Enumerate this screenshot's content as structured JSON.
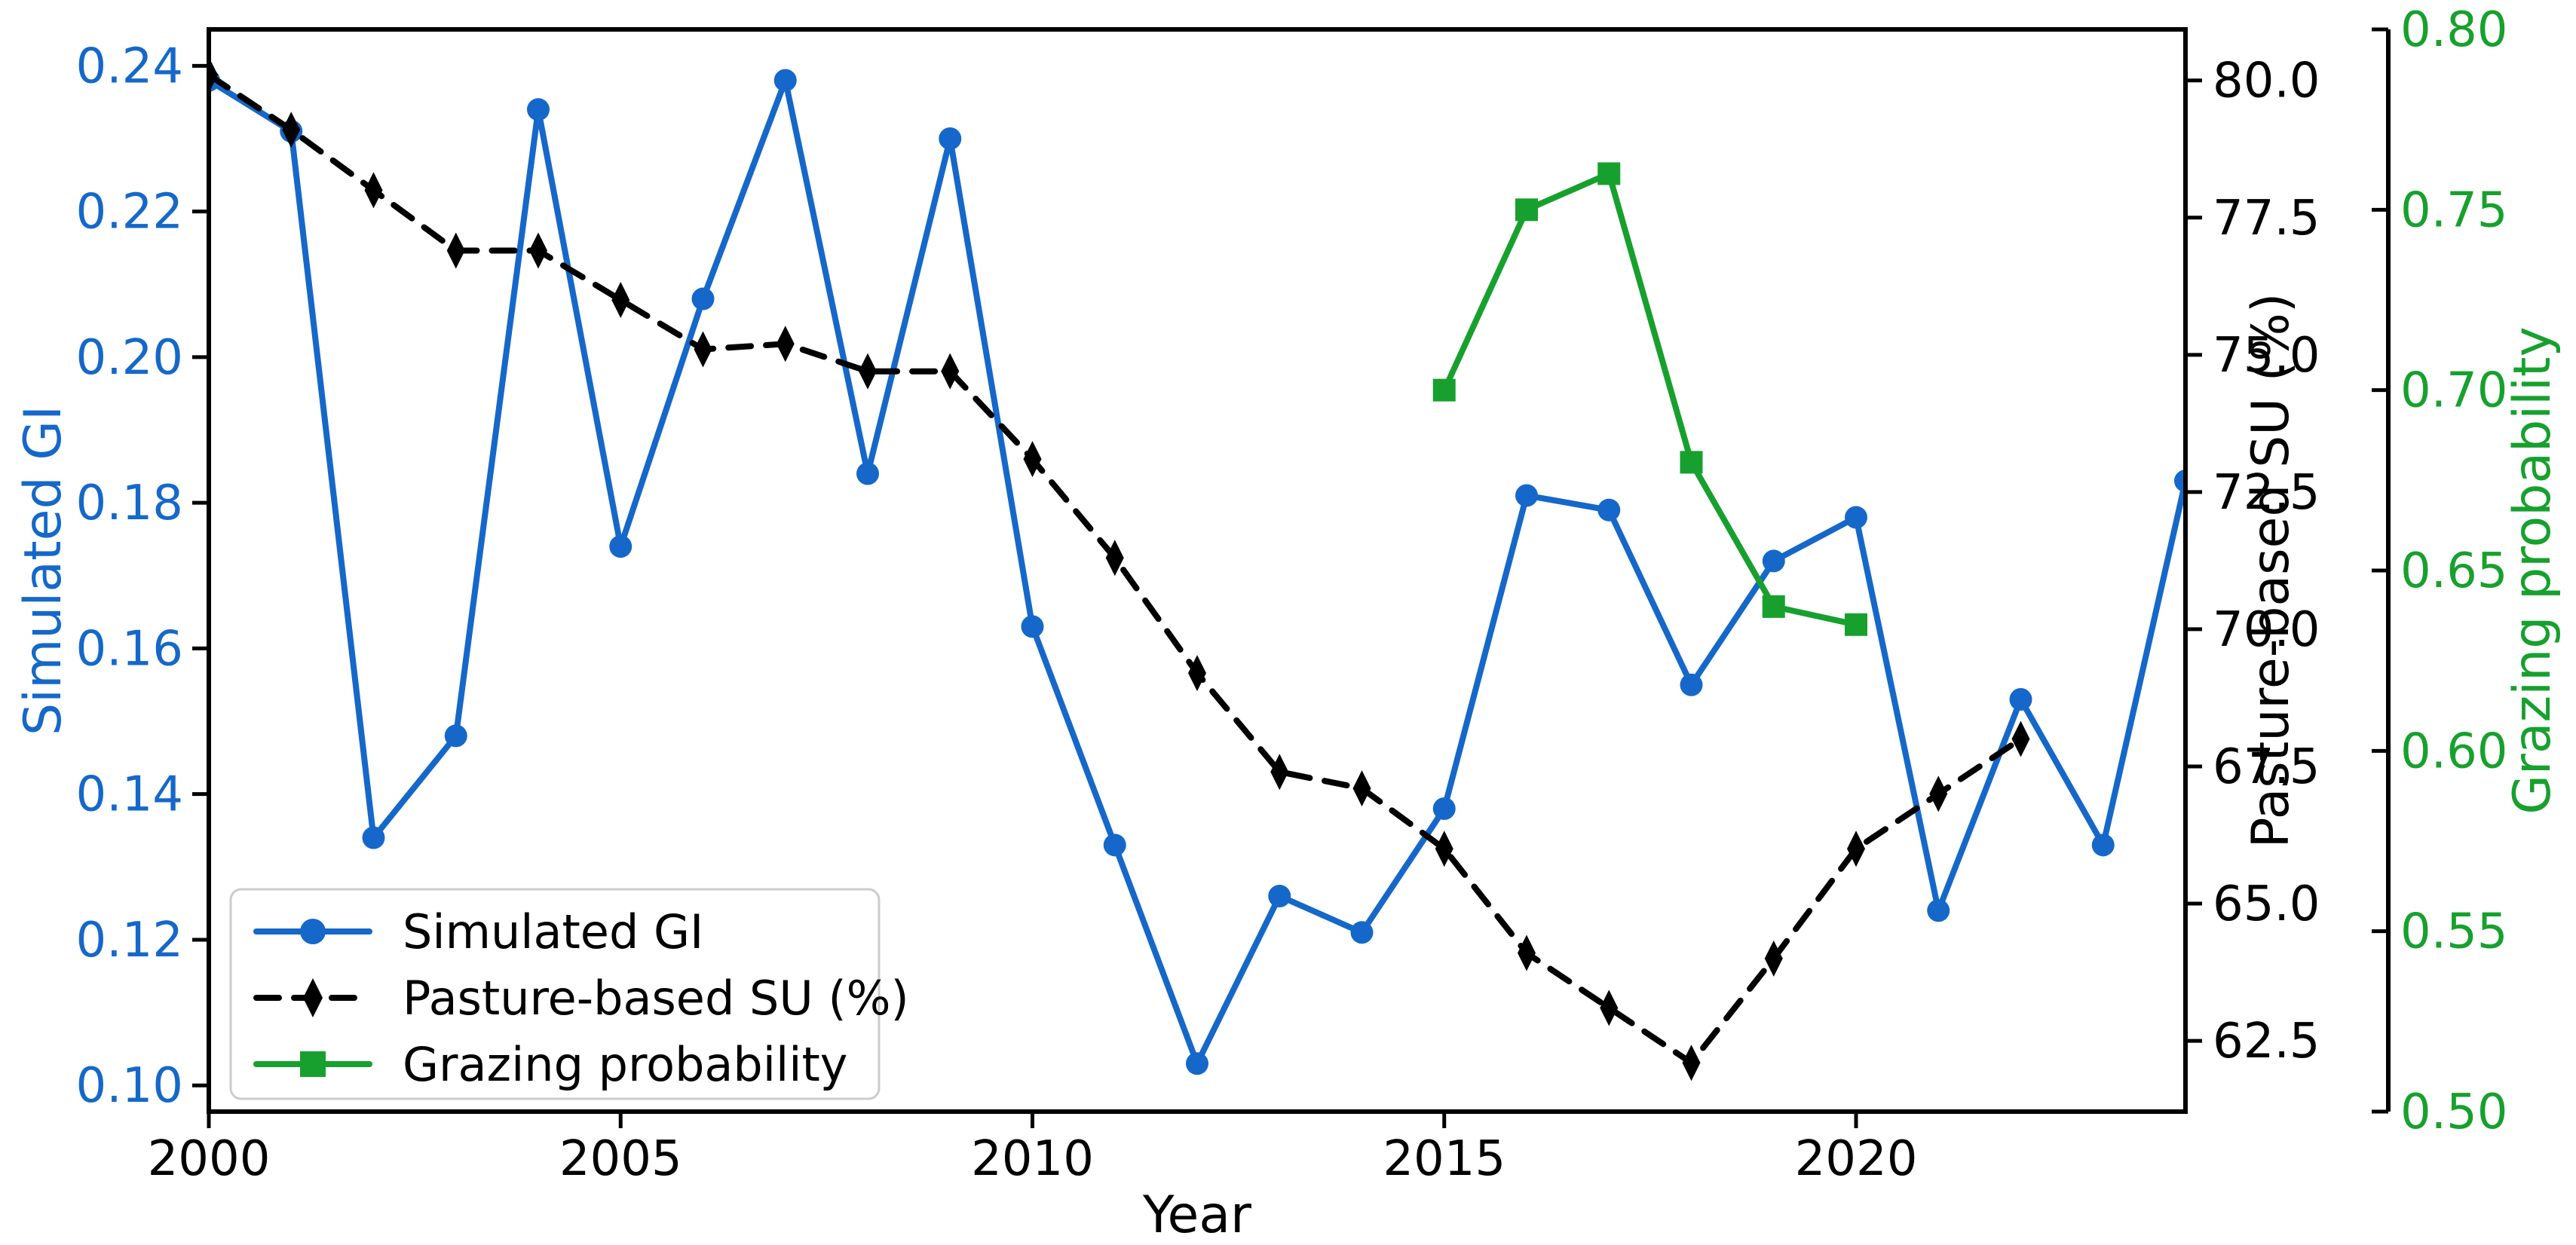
{
  "chart_data": {
    "type": "line",
    "title": "",
    "xlabel": "Year",
    "x_ticks": [
      2000,
      2005,
      2010,
      2015,
      2020
    ],
    "xlim": [
      2000,
      2024
    ],
    "grid": false,
    "legend": {
      "position": "lower left",
      "entries": [
        "Simulated GI",
        "Pasture-based SU (%)",
        "Grazing probability"
      ]
    },
    "axes": {
      "left": {
        "label": "Simulated GI",
        "color": "#1568c9",
        "ticks": [
          0.24,
          0.22,
          0.2,
          0.18,
          0.16,
          0.14,
          0.12,
          0.1
        ],
        "lim": [
          0.0964,
          0.245
        ],
        "decimals": 2
      },
      "right_su": {
        "label": "Pasture-based SU (%)",
        "color": "#000000",
        "ticks": [
          80.0,
          77.5,
          75.0,
          72.5,
          70.0,
          67.5,
          65.0,
          62.5
        ],
        "lim": [
          61.21,
          80.93
        ],
        "decimals": 1
      },
      "right_gp": {
        "label": "Grazing probability",
        "color": "#17a02e",
        "ticks": [
          0.8,
          0.75,
          0.7,
          0.65,
          0.6,
          0.55,
          0.5
        ],
        "lim": [
          0.5,
          0.8
        ],
        "decimals": 2
      }
    },
    "series": [
      {
        "name": "Simulated GI",
        "axis": "left",
        "color": "#1568c9",
        "marker": "circle",
        "line": "solid",
        "x": [
          2000,
          2001,
          2002,
          2003,
          2004,
          2005,
          2006,
          2007,
          2008,
          2009,
          2010,
          2011,
          2012,
          2013,
          2014,
          2015,
          2016,
          2017,
          2018,
          2019,
          2020,
          2021,
          2022,
          2023,
          2024
        ],
        "y": [
          0.238,
          0.231,
          0.134,
          0.148,
          0.234,
          0.174,
          0.208,
          0.238,
          0.184,
          0.23,
          0.163,
          0.133,
          0.103,
          0.126,
          0.121,
          0.138,
          0.181,
          0.179,
          0.155,
          0.172,
          0.178,
          0.124,
          0.153,
          0.133,
          0.183
        ]
      },
      {
        "name": "Pasture-based SU (%)",
        "axis": "right_su",
        "color": "#000000",
        "marker": "diamond",
        "line": "dashed",
        "x": [
          2000,
          2001,
          2002,
          2003,
          2004,
          2005,
          2006,
          2007,
          2008,
          2009,
          2010,
          2011,
          2012,
          2013,
          2014,
          2015,
          2016,
          2017,
          2018,
          2019,
          2020,
          2021,
          2022
        ],
        "y": [
          80.1,
          79.1,
          78.0,
          76.9,
          76.9,
          76.0,
          75.1,
          75.2,
          74.7,
          74.7,
          73.1,
          71.3,
          69.2,
          67.4,
          67.1,
          66.0,
          64.1,
          63.1,
          62.1,
          64.0,
          66.0,
          67.0,
          68.0
        ]
      },
      {
        "name": "Grazing probability",
        "axis": "right_gp",
        "color": "#17a02e",
        "marker": "square",
        "line": "solid",
        "x": [
          2015,
          2016,
          2017,
          2018,
          2019,
          2020
        ],
        "y": [
          0.7,
          0.75,
          0.76,
          0.68,
          0.64,
          0.635
        ]
      }
    ]
  }
}
